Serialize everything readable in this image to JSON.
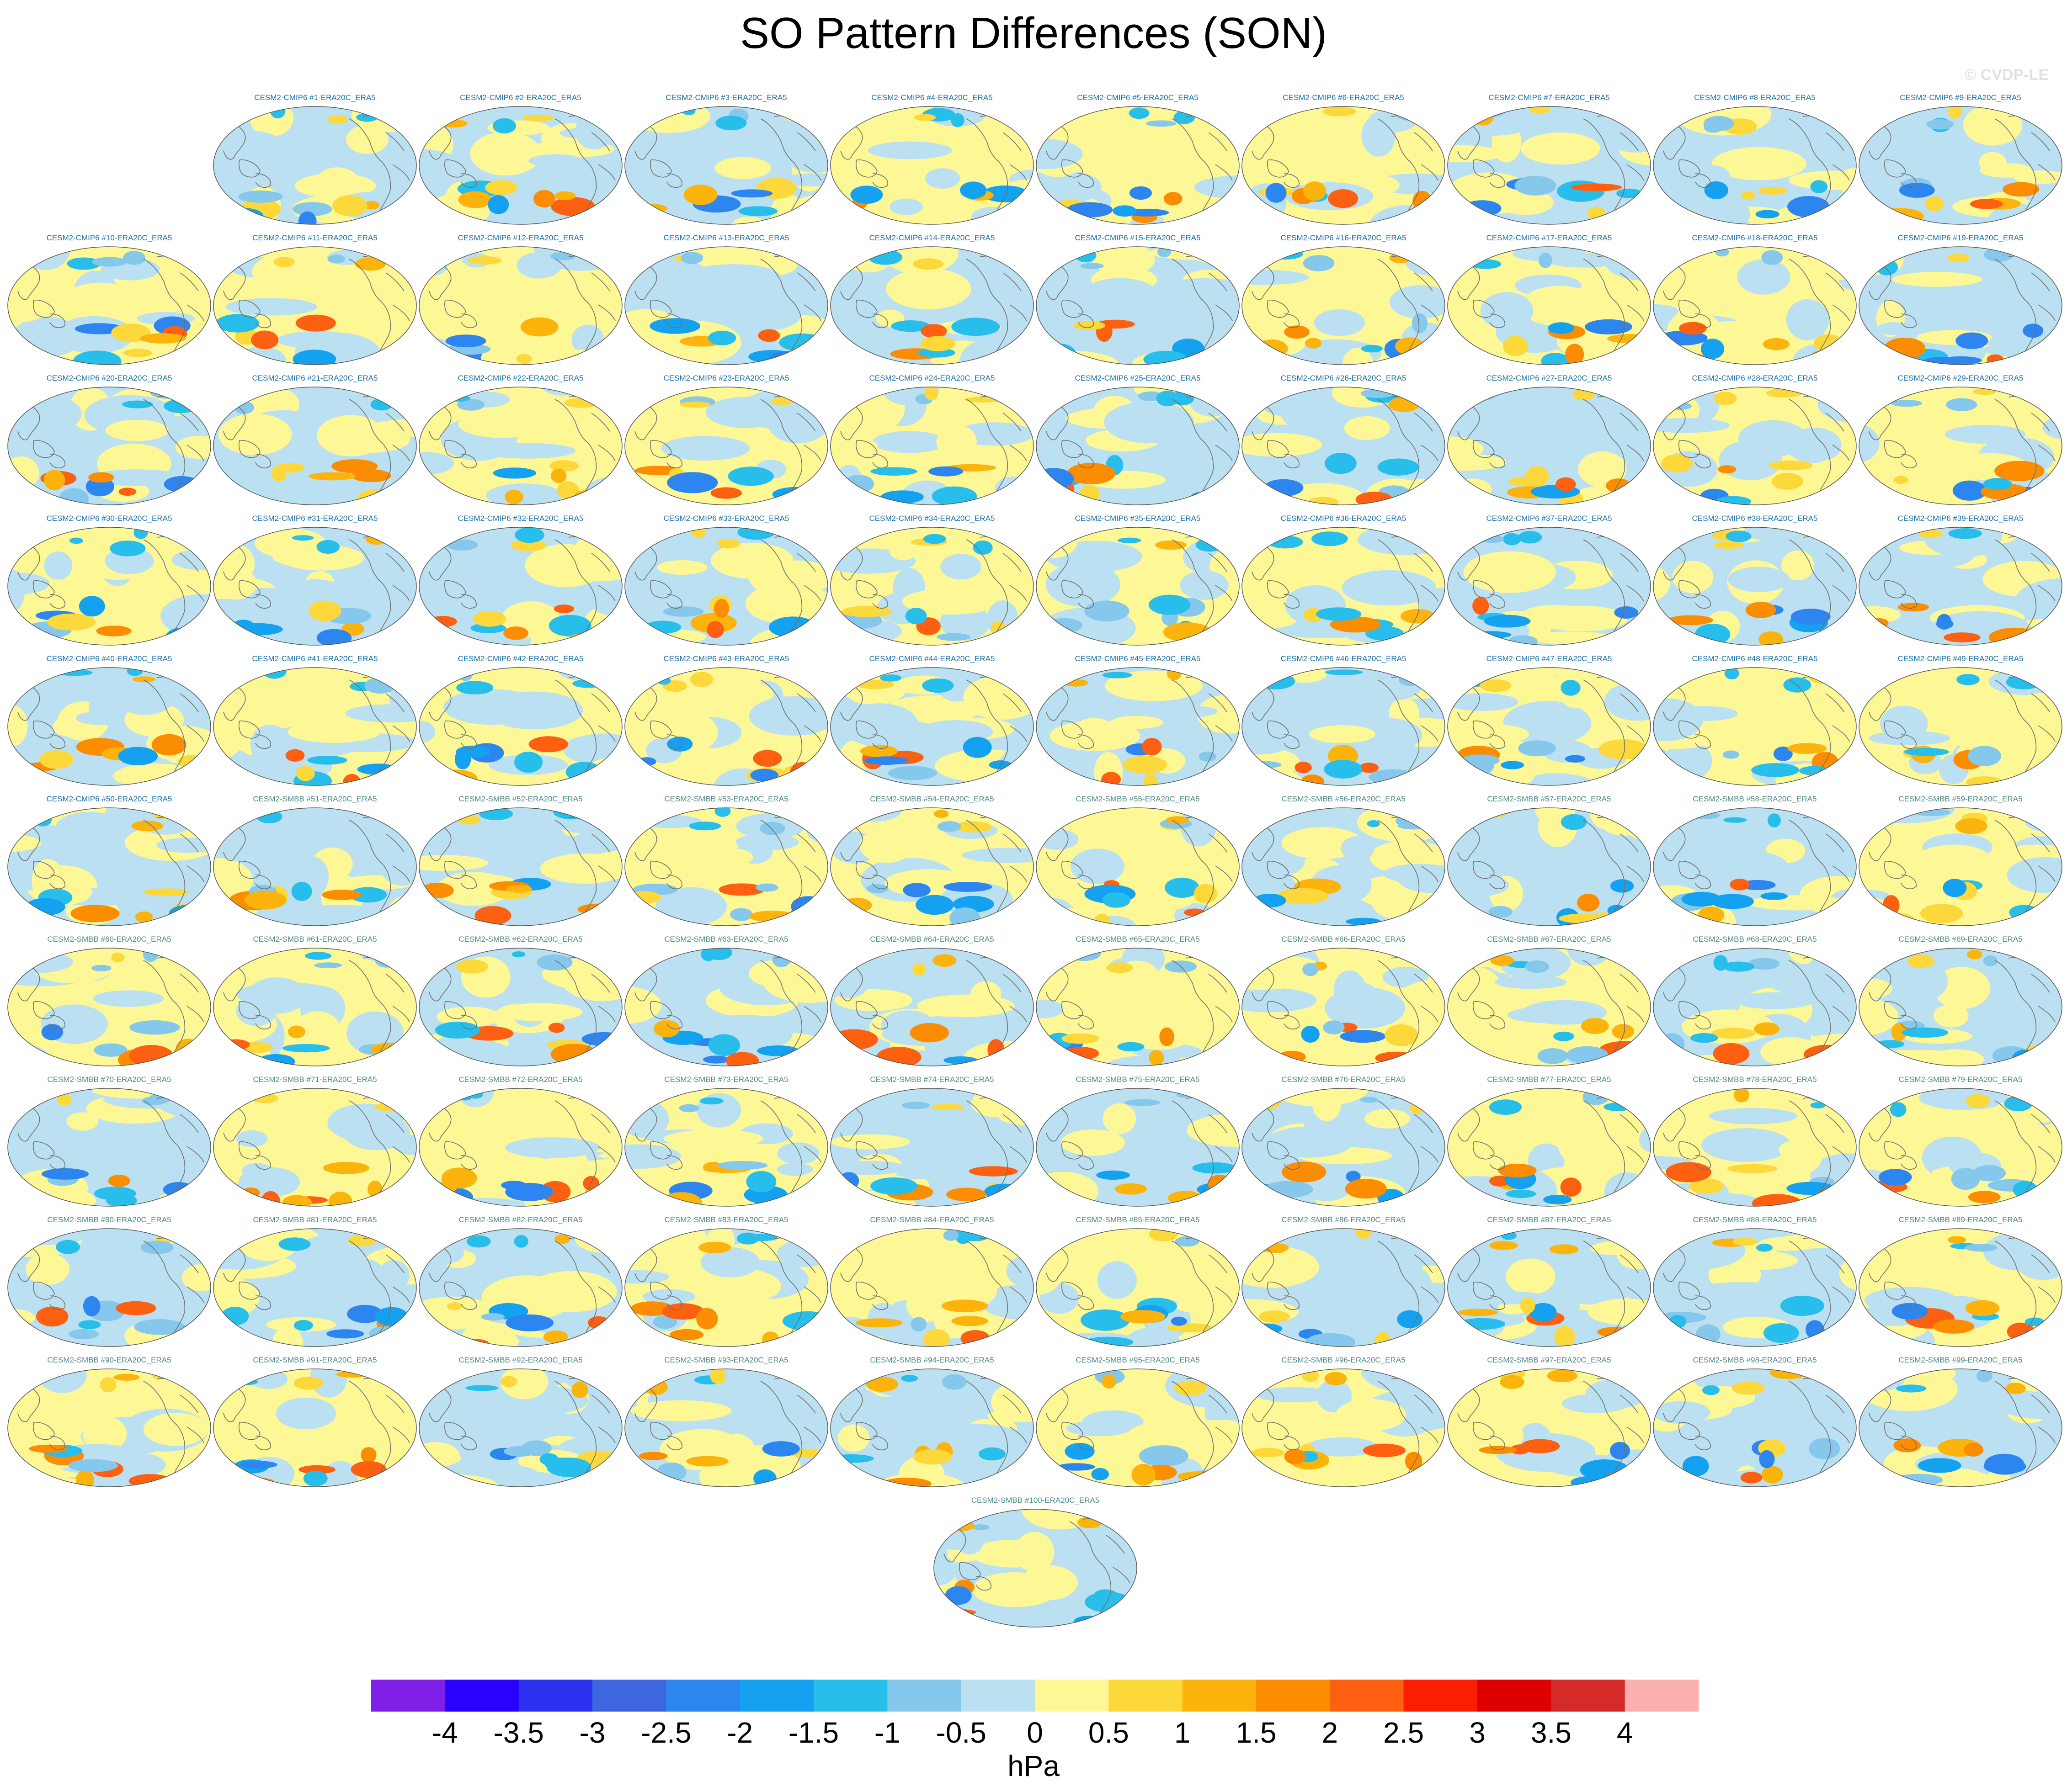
{
  "title": "SO Pattern Differences (SON)",
  "watermark": "© CVDP-LE",
  "panel_suffix": "-ERA20C_ERA5",
  "panels": [
    {
      "label": "CESM2-CMIP6 #1-ERA20C_ERA5",
      "group": "cmip6"
    },
    {
      "label": "CESM2-CMIP6 #2-ERA20C_ERA5",
      "group": "cmip6"
    },
    {
      "label": "CESM2-CMIP6 #3-ERA20C_ERA5",
      "group": "cmip6"
    },
    {
      "label": "CESM2-CMIP6 #4-ERA20C_ERA5",
      "group": "cmip6"
    },
    {
      "label": "CESM2-CMIP6 #5-ERA20C_ERA5",
      "group": "cmip6"
    },
    {
      "label": "CESM2-CMIP6 #6-ERA20C_ERA5",
      "group": "cmip6"
    },
    {
      "label": "CESM2-CMIP6 #7-ERA20C_ERA5",
      "group": "cmip6"
    },
    {
      "label": "CESM2-CMIP6 #8-ERA20C_ERA5",
      "group": "cmip6"
    },
    {
      "label": "CESM2-CMIP6 #9-ERA20C_ERA5",
      "group": "cmip6"
    },
    {
      "label": "CESM2-CMIP6 #10-ERA20C_ERA5",
      "group": "cmip6"
    },
    {
      "label": "CESM2-CMIP6 #11-ERA20C_ERA5",
      "group": "cmip6"
    },
    {
      "label": "CESM2-CMIP6 #12-ERA20C_ERA5",
      "group": "cmip6"
    },
    {
      "label": "CESM2-CMIP6 #13-ERA20C_ERA5",
      "group": "cmip6"
    },
    {
      "label": "CESM2-CMIP6 #14-ERA20C_ERA5",
      "group": "cmip6"
    },
    {
      "label": "CESM2-CMIP6 #15-ERA20C_ERA5",
      "group": "cmip6"
    },
    {
      "label": "CESM2-CMIP6 #16-ERA20C_ERA5",
      "group": "cmip6"
    },
    {
      "label": "CESM2-CMIP6 #17-ERA20C_ERA5",
      "group": "cmip6"
    },
    {
      "label": "CESM2-CMIP6 #18-ERA20C_ERA5",
      "group": "cmip6"
    },
    {
      "label": "CESM2-CMIP6 #19-ERA20C_ERA5",
      "group": "cmip6"
    },
    {
      "label": "CESM2-CMIP6 #20-ERA20C_ERA5",
      "group": "cmip6"
    },
    {
      "label": "CESM2-CMIP6 #21-ERA20C_ERA5",
      "group": "cmip6"
    },
    {
      "label": "CESM2-CMIP6 #22-ERA20C_ERA5",
      "group": "cmip6"
    },
    {
      "label": "CESM2-CMIP6 #23-ERA20C_ERA5",
      "group": "cmip6"
    },
    {
      "label": "CESM2-CMIP6 #24-ERA20C_ERA5",
      "group": "cmip6"
    },
    {
      "label": "CESM2-CMIP6 #25-ERA20C_ERA5",
      "group": "cmip6"
    },
    {
      "label": "CESM2-CMIP6 #26-ERA20C_ERA5",
      "group": "cmip6"
    },
    {
      "label": "CESM2-CMIP6 #27-ERA20C_ERA5",
      "group": "cmip6"
    },
    {
      "label": "CESM2-CMIP6 #28-ERA20C_ERA5",
      "group": "cmip6"
    },
    {
      "label": "CESM2-CMIP6 #29-ERA20C_ERA5",
      "group": "cmip6"
    },
    {
      "label": "CESM2-CMIP6 #30-ERA20C_ERA5",
      "group": "cmip6"
    },
    {
      "label": "CESM2-CMIP6 #31-ERA20C_ERA5",
      "group": "cmip6"
    },
    {
      "label": "CESM2-CMIP6 #32-ERA20C_ERA5",
      "group": "cmip6"
    },
    {
      "label": "CESM2-CMIP6 #33-ERA20C_ERA5",
      "group": "cmip6"
    },
    {
      "label": "CESM2-CMIP6 #34-ERA20C_ERA5",
      "group": "cmip6"
    },
    {
      "label": "CESM2-CMIP6 #35-ERA20C_ERA5",
      "group": "cmip6"
    },
    {
      "label": "CESM2-CMIP6 #36-ERA20C_ERA5",
      "group": "cmip6"
    },
    {
      "label": "CESM2-CMIP6 #37-ERA20C_ERA5",
      "group": "cmip6"
    },
    {
      "label": "CESM2-CMIP6 #38-ERA20C_ERA5",
      "group": "cmip6"
    },
    {
      "label": "CESM2-CMIP6 #39-ERA20C_ERA5",
      "group": "cmip6"
    },
    {
      "label": "CESM2-CMIP6 #40-ERA20C_ERA5",
      "group": "cmip6"
    },
    {
      "label": "CESM2-CMIP6 #41-ERA20C_ERA5",
      "group": "cmip6"
    },
    {
      "label": "CESM2-CMIP6 #42-ERA20C_ERA5",
      "group": "cmip6"
    },
    {
      "label": "CESM2-CMIP6 #43-ERA20C_ERA5",
      "group": "cmip6"
    },
    {
      "label": "CESM2-CMIP6 #44-ERA20C_ERA5",
      "group": "cmip6"
    },
    {
      "label": "CESM2-CMIP6 #45-ERA20C_ERA5",
      "group": "cmip6"
    },
    {
      "label": "CESM2-CMIP6 #46-ERA20C_ERA5",
      "group": "cmip6"
    },
    {
      "label": "CESM2-CMIP6 #47-ERA20C_ERA5",
      "group": "cmip6"
    },
    {
      "label": "CESM2-CMIP6 #48-ERA20C_ERA5",
      "group": "cmip6"
    },
    {
      "label": "CESM2-CMIP6 #49-ERA20C_ERA5",
      "group": "cmip6"
    },
    {
      "label": "CESM2-CMIP6 #50-ERA20C_ERA5",
      "group": "cmip6"
    },
    {
      "label": "CESM2-SMBB #51-ERA20C_ERA5",
      "group": "smbb"
    },
    {
      "label": "CESM2-SMBB #52-ERA20C_ERA5",
      "group": "smbb"
    },
    {
      "label": "CESM2-SMBB #53-ERA20C_ERA5",
      "group": "smbb"
    },
    {
      "label": "CESM2-SMBB #54-ERA20C_ERA5",
      "group": "smbb"
    },
    {
      "label": "CESM2-SMBB #55-ERA20C_ERA5",
      "group": "smbb"
    },
    {
      "label": "CESM2-SMBB #56-ERA20C_ERA5",
      "group": "smbb"
    },
    {
      "label": "CESM2-SMBB #57-ERA20C_ERA5",
      "group": "smbb"
    },
    {
      "label": "CESM2-SMBB #58-ERA20C_ERA5",
      "group": "smbb"
    },
    {
      "label": "CESM2-SMBB #59-ERA20C_ERA5",
      "group": "smbb"
    },
    {
      "label": "CESM2-SMBB #60-ERA20C_ERA5",
      "group": "smbb"
    },
    {
      "label": "CESM2-SMBB #61-ERA20C_ERA5",
      "group": "smbb"
    },
    {
      "label": "CESM2-SMBB #62-ERA20C_ERA5",
      "group": "smbb"
    },
    {
      "label": "CESM2-SMBB #63-ERA20C_ERA5",
      "group": "smbb"
    },
    {
      "label": "CESM2-SMBB #64-ERA20C_ERA5",
      "group": "smbb"
    },
    {
      "label": "CESM2-SMBB #65-ERA20C_ERA5",
      "group": "smbb"
    },
    {
      "label": "CESM2-SMBB #66-ERA20C_ERA5",
      "group": "smbb"
    },
    {
      "label": "CESM2-SMBB #67-ERA20C_ERA5",
      "group": "smbb"
    },
    {
      "label": "CESM2-SMBB #68-ERA20C_ERA5",
      "group": "smbb"
    },
    {
      "label": "CESM2-SMBB #69-ERA20C_ERA5",
      "group": "smbb"
    },
    {
      "label": "CESM2-SMBB #70-ERA20C_ERA5",
      "group": "smbb"
    },
    {
      "label": "CESM2-SMBB #71-ERA20C_ERA5",
      "group": "smbb"
    },
    {
      "label": "CESM2-SMBB #72-ERA20C_ERA5",
      "group": "smbb"
    },
    {
      "label": "CESM2-SMBB #73-ERA20C_ERA5",
      "group": "smbb"
    },
    {
      "label": "CESM2-SMBB #74-ERA20C_ERA5",
      "group": "smbb"
    },
    {
      "label": "CESM2-SMBB #75-ERA20C_ERA5",
      "group": "smbb"
    },
    {
      "label": "CESM2-SMBB #76-ERA20C_ERA5",
      "group": "smbb"
    },
    {
      "label": "CESM2-SMBB #77-ERA20C_ERA5",
      "group": "smbb"
    },
    {
      "label": "CESM2-SMBB #78-ERA20C_ERA5",
      "group": "smbb"
    },
    {
      "label": "CESM2-SMBB #79-ERA20C_ERA5",
      "group": "smbb"
    },
    {
      "label": "CESM2-SMBB #80-ERA20C_ERA5",
      "group": "smbb"
    },
    {
      "label": "CESM2-SMBB #81-ERA20C_ERA5",
      "group": "smbb"
    },
    {
      "label": "CESM2-SMBB #82-ERA20C_ERA5",
      "group": "smbb"
    },
    {
      "label": "CESM2-SMBB #83-ERA20C_ERA5",
      "group": "smbb"
    },
    {
      "label": "CESM2-SMBB #84-ERA20C_ERA5",
      "group": "smbb"
    },
    {
      "label": "CESM2-SMBB #85-ERA20C_ERA5",
      "group": "smbb"
    },
    {
      "label": "CESM2-SMBB #86-ERA20C_ERA5",
      "group": "smbb"
    },
    {
      "label": "CESM2-SMBB #87-ERA20C_ERA5",
      "group": "smbb"
    },
    {
      "label": "CESM2-SMBB #88-ERA20C_ERA5",
      "group": "smbb"
    },
    {
      "label": "CESM2-SMBB #89-ERA20C_ERA5",
      "group": "smbb"
    },
    {
      "label": "CESM2-SMBB #90-ERA20C_ERA5",
      "group": "smbb"
    },
    {
      "label": "CESM2-SMBB #91-ERA20C_ERA5",
      "group": "smbb"
    },
    {
      "label": "CESM2-SMBB #92-ERA20C_ERA5",
      "group": "smbb"
    },
    {
      "label": "CESM2-SMBB #93-ERA20C_ERA5",
      "group": "smbb"
    },
    {
      "label": "CESM2-SMBB #94-ERA20C_ERA5",
      "group": "smbb"
    },
    {
      "label": "CESM2-SMBB #95-ERA20C_ERA5",
      "group": "smbb"
    },
    {
      "label": "CESM2-SMBB #96-ERA20C_ERA5",
      "group": "smbb"
    },
    {
      "label": "CESM2-SMBB #97-ERA20C_ERA5",
      "group": "smbb"
    },
    {
      "label": "CESM2-SMBB #98-ERA20C_ERA5",
      "group": "smbb"
    },
    {
      "label": "CESM2-SMBB #99-ERA20C_ERA5",
      "group": "smbb"
    },
    {
      "label": "CESM2-SMBB #100-ERA20C_ERA5",
      "group": "smbb"
    }
  ],
  "colorbar": {
    "colors": [
      "#7f1fe8",
      "#2a00ff",
      "#2a32f0",
      "#3d66e0",
      "#2d86f0",
      "#14a2f0",
      "#28beec",
      "#86c8ec",
      "#bbe0f2",
      "#fdf895",
      "#fdd83a",
      "#fcb40c",
      "#fc8c00",
      "#fc6010",
      "#fc1e00",
      "#de0000",
      "#d42a2a",
      "#fdb0b0"
    ],
    "tick_labels": [
      "-4",
      "-3.5",
      "-3",
      "-2.5",
      "-2",
      "-1.5",
      "-1",
      "-0.5",
      "0",
      "0.5",
      "1",
      "1.5",
      "2",
      "2.5",
      "3",
      "3.5",
      "4"
    ],
    "units": "hPa"
  },
  "style": {
    "cmip6_title_color": "#1a6fa6",
    "smbb_title_color": "#4d8a86",
    "coast_color": "#6f6f6f",
    "map_outline_color": "#555555"
  }
}
